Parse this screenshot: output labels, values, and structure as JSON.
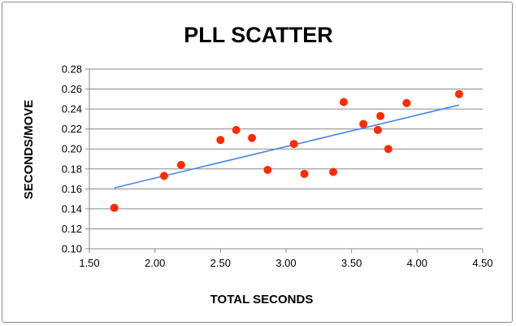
{
  "chart_data": {
    "type": "scatter",
    "title": "PLL SCATTER",
    "xlabel": "TOTAL SECONDS",
    "ylabel": "SECONDS/MOVE",
    "xlim": [
      1.5,
      4.5
    ],
    "ylim": [
      0.1,
      0.28
    ],
    "x_ticks": [
      "1.50",
      "2.00",
      "2.50",
      "3.00",
      "3.50",
      "4.00",
      "4.50"
    ],
    "y_ticks": [
      "0.10",
      "0.12",
      "0.14",
      "0.16",
      "0.18",
      "0.20",
      "0.22",
      "0.24",
      "0.26",
      "0.28"
    ],
    "grid": "horizontal",
    "legend": "none",
    "point_color": "#ff2a00",
    "trendline_color": "#4a86e8",
    "points": [
      {
        "x": 1.69,
        "y": 0.141
      },
      {
        "x": 2.07,
        "y": 0.173
      },
      {
        "x": 2.2,
        "y": 0.184
      },
      {
        "x": 2.5,
        "y": 0.209
      },
      {
        "x": 2.62,
        "y": 0.219
      },
      {
        "x": 2.74,
        "y": 0.211
      },
      {
        "x": 2.86,
        "y": 0.179
      },
      {
        "x": 3.06,
        "y": 0.205
      },
      {
        "x": 3.14,
        "y": 0.175
      },
      {
        "x": 3.36,
        "y": 0.177
      },
      {
        "x": 3.44,
        "y": 0.247
      },
      {
        "x": 3.59,
        "y": 0.225
      },
      {
        "x": 3.7,
        "y": 0.219
      },
      {
        "x": 3.72,
        "y": 0.233
      },
      {
        "x": 3.78,
        "y": 0.2
      },
      {
        "x": 3.92,
        "y": 0.246
      },
      {
        "x": 4.32,
        "y": 0.255
      }
    ],
    "trendline": {
      "x": [
        1.69,
        4.32
      ],
      "y": [
        0.161,
        0.244
      ]
    }
  }
}
